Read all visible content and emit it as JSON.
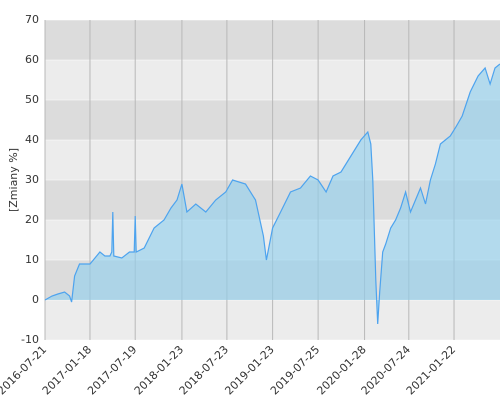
{
  "chart_data": {
    "type": "area",
    "y_label": "[Zmiany %]",
    "x": [
      "2016-07-21",
      "2016-08-18",
      "2016-09-11",
      "2016-10-08",
      "2016-10-28",
      "2016-11-05",
      "2016-11-17",
      "2016-12-07",
      "2017-01-18",
      "2017-02-27",
      "2017-03-19",
      "2017-04-08",
      "2017-04-16",
      "2017-04-20",
      "2017-04-24",
      "2017-05-26",
      "2017-06-26",
      "2017-07-15",
      "2017-07-19",
      "2017-07-23",
      "2017-08-24",
      "2017-10-03",
      "2017-11-12",
      "2017-12-10",
      "2018-01-03",
      "2018-01-23",
      "2018-02-12",
      "2018-03-20",
      "2018-04-29",
      "2018-06-08",
      "2018-07-18",
      "2018-08-15",
      "2018-10-06",
      "2018-11-15",
      "2018-12-17",
      "2018-12-29",
      "2019-01-23",
      "2019-02-24",
      "2019-04-05",
      "2019-05-15",
      "2019-06-24",
      "2019-07-25",
      "2019-08-26",
      "2019-09-23",
      "2019-10-25",
      "2019-12-04",
      "2020-01-13",
      "2020-02-10",
      "2020-02-22",
      "2020-03-01",
      "2020-03-13",
      "2020-03-21",
      "2020-03-29",
      "2020-04-10",
      "2020-04-22",
      "2020-05-12",
      "2020-06-01",
      "2020-06-21",
      "2020-07-11",
      "2020-07-31",
      "2020-08-20",
      "2020-09-09",
      "2020-09-29",
      "2020-10-19",
      "2020-11-08",
      "2020-11-28",
      "2020-12-18",
      "2021-01-07",
      "2021-01-27",
      "2021-02-24",
      "2021-03-28",
      "2021-04-29",
      "2021-05-27",
      "2021-06-16",
      "2021-07-06",
      "2021-07-26"
    ],
    "series": [
      {
        "color": "#4da3ee",
        "values": [
          0,
          1,
          1.5,
          2,
          1,
          -0.5,
          6,
          9,
          9,
          12,
          11,
          11,
          12,
          22,
          11,
          10.5,
          12,
          12,
          21,
          12,
          13,
          18,
          20,
          23,
          25,
          29,
          22,
          24,
          22,
          25,
          27,
          30,
          29,
          25,
          16,
          10,
          18,
          22,
          27,
          28,
          31,
          30,
          27,
          31,
          32,
          36,
          40,
          42,
          39,
          30,
          5,
          -6,
          2,
          12,
          14,
          18,
          20,
          23,
          27,
          22,
          25,
          28,
          24,
          30,
          34,
          39,
          40,
          41,
          43,
          46,
          52,
          56,
          58,
          54,
          58,
          59
        ]
      }
    ],
    "ylim": [
      -10,
      70
    ],
    "yticks": [
      -10,
      0,
      10,
      20,
      30,
      40,
      50,
      60,
      70
    ],
    "xticks": [
      "2016-07-21",
      "2017-01-18",
      "2017-07-19",
      "2018-01-23",
      "2018-07-23",
      "2019-01-23",
      "2019-07-25",
      "2020-01-28",
      "2020-07-24",
      "2021-01-22"
    ],
    "grid": true
  }
}
